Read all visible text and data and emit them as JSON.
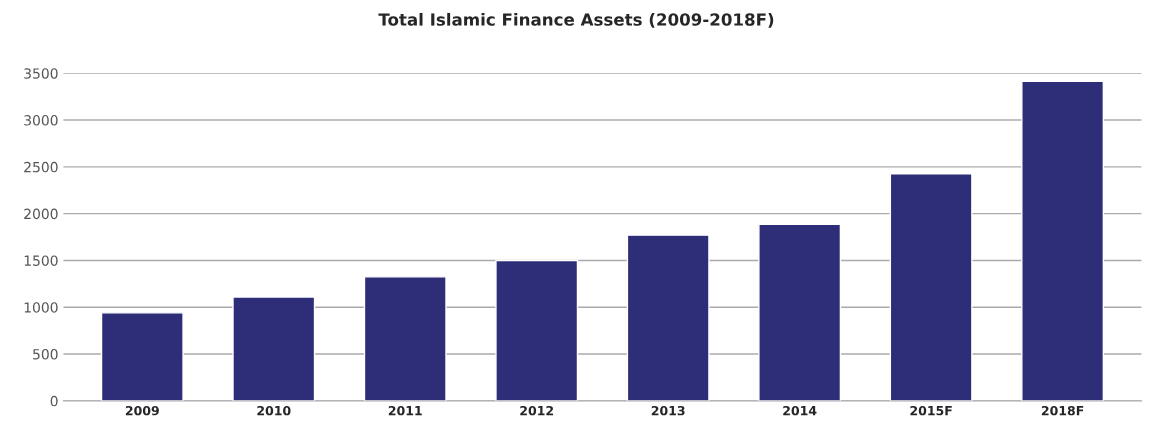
{
  "chart_data": {
    "type": "bar",
    "title": "Total Islamic Finance Assets (2009-2018F)",
    "categories": [
      "2009",
      "2010",
      "2011",
      "2012",
      "2013",
      "2014",
      "2015F",
      "2018F"
    ],
    "values": [
      940,
      1110,
      1325,
      1500,
      1770,
      1885,
      2425,
      3415
    ],
    "color": "#2e2e78",
    "ylim": [
      0,
      3500
    ],
    "yticks": [
      0,
      500,
      1000,
      1500,
      2000,
      2500,
      3000,
      3500
    ],
    "grid": "y"
  }
}
